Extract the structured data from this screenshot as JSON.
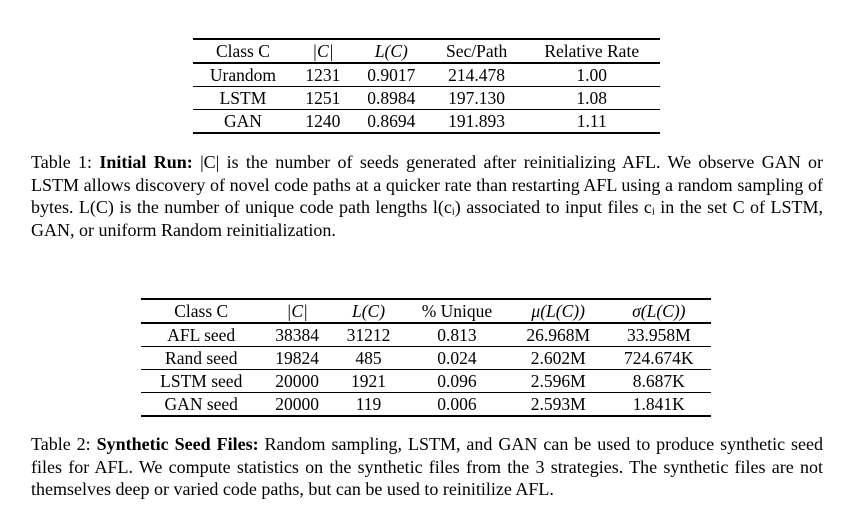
{
  "table1": {
    "headers": [
      "Class C",
      "|C|",
      "L(C)",
      "Sec/Path",
      "Relative Rate"
    ],
    "rows": [
      [
        "Urandom",
        "1231",
        "0.9017",
        "214.478",
        "1.00"
      ],
      [
        "LSTM",
        "1251",
        "0.8984",
        "197.130",
        "1.08"
      ],
      [
        "GAN",
        "1240",
        "0.8694",
        "191.893",
        "1.11"
      ]
    ]
  },
  "caption1": {
    "label": "Table 1:",
    "title": "Initial Run:",
    "text": "|C| is the number of seeds generated after reinitializing AFL. We observe GAN or LSTM allows discovery of novel code paths at a quicker rate than restarting AFL using a random sampling of bytes. L(C) is the number of unique code path lengths l(cᵢ) associated to input files cᵢ in the set C of LSTM, GAN, or uniform Random reinitialization."
  },
  "table2": {
    "headers": [
      "Class C",
      "|C|",
      "L(C)",
      "% Unique",
      "μ(L(C))",
      "σ(L(C))"
    ],
    "rows": [
      [
        "AFL seed",
        "38384",
        "31212",
        "0.813",
        "26.968M",
        "33.958M"
      ],
      [
        "Rand seed",
        "19824",
        "485",
        "0.024",
        "2.602M",
        "724.674K"
      ],
      [
        "LSTM seed",
        "20000",
        "1921",
        "0.096",
        "2.596M",
        "8.687K"
      ],
      [
        "GAN seed",
        "20000",
        "119",
        "0.006",
        "2.593M",
        "1.841K"
      ]
    ]
  },
  "caption2": {
    "label": "Table 2:",
    "title": "Synthetic Seed Files:",
    "text": "Random sampling, LSTM, and GAN can be used to produce synthetic seed files for AFL. We compute statistics on the synthetic files from the 3 strategies. The synthetic files are not themselves deep or varied code paths, but can be used to reinitilize AFL."
  }
}
